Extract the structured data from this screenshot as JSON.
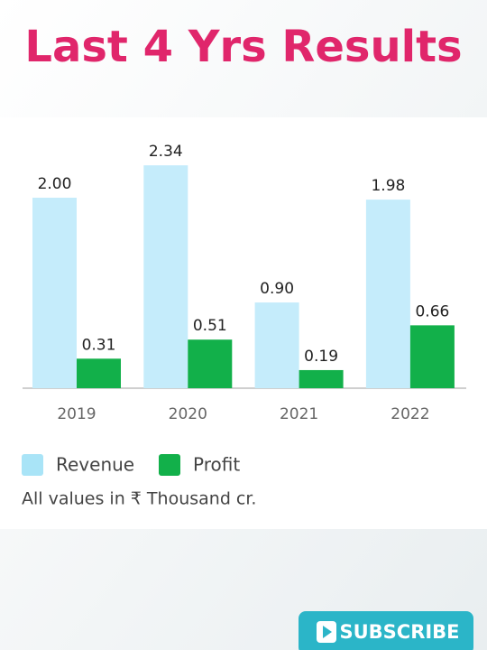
{
  "chart_data": {
    "type": "bar",
    "title": "Last 4 Yrs Results",
    "categories": [
      "2019",
      "2020",
      "2021",
      "2022"
    ],
    "series": [
      {
        "name": "Revenue",
        "color": "#c5ecfb",
        "values": [
          2.0,
          2.34,
          0.9,
          1.98
        ],
        "value_labels": [
          "2.00",
          "2.34",
          "0.90",
          "1.98"
        ]
      },
      {
        "name": "Profit",
        "color": "#12b04a",
        "values": [
          0.31,
          0.51,
          0.19,
          0.66
        ],
        "value_labels": [
          "0.31",
          "0.51",
          "0.19",
          "0.66"
        ]
      }
    ],
    "note": "All values in ₹ Thousand cr."
  },
  "button": {
    "label": "SUBSCRIBE"
  }
}
